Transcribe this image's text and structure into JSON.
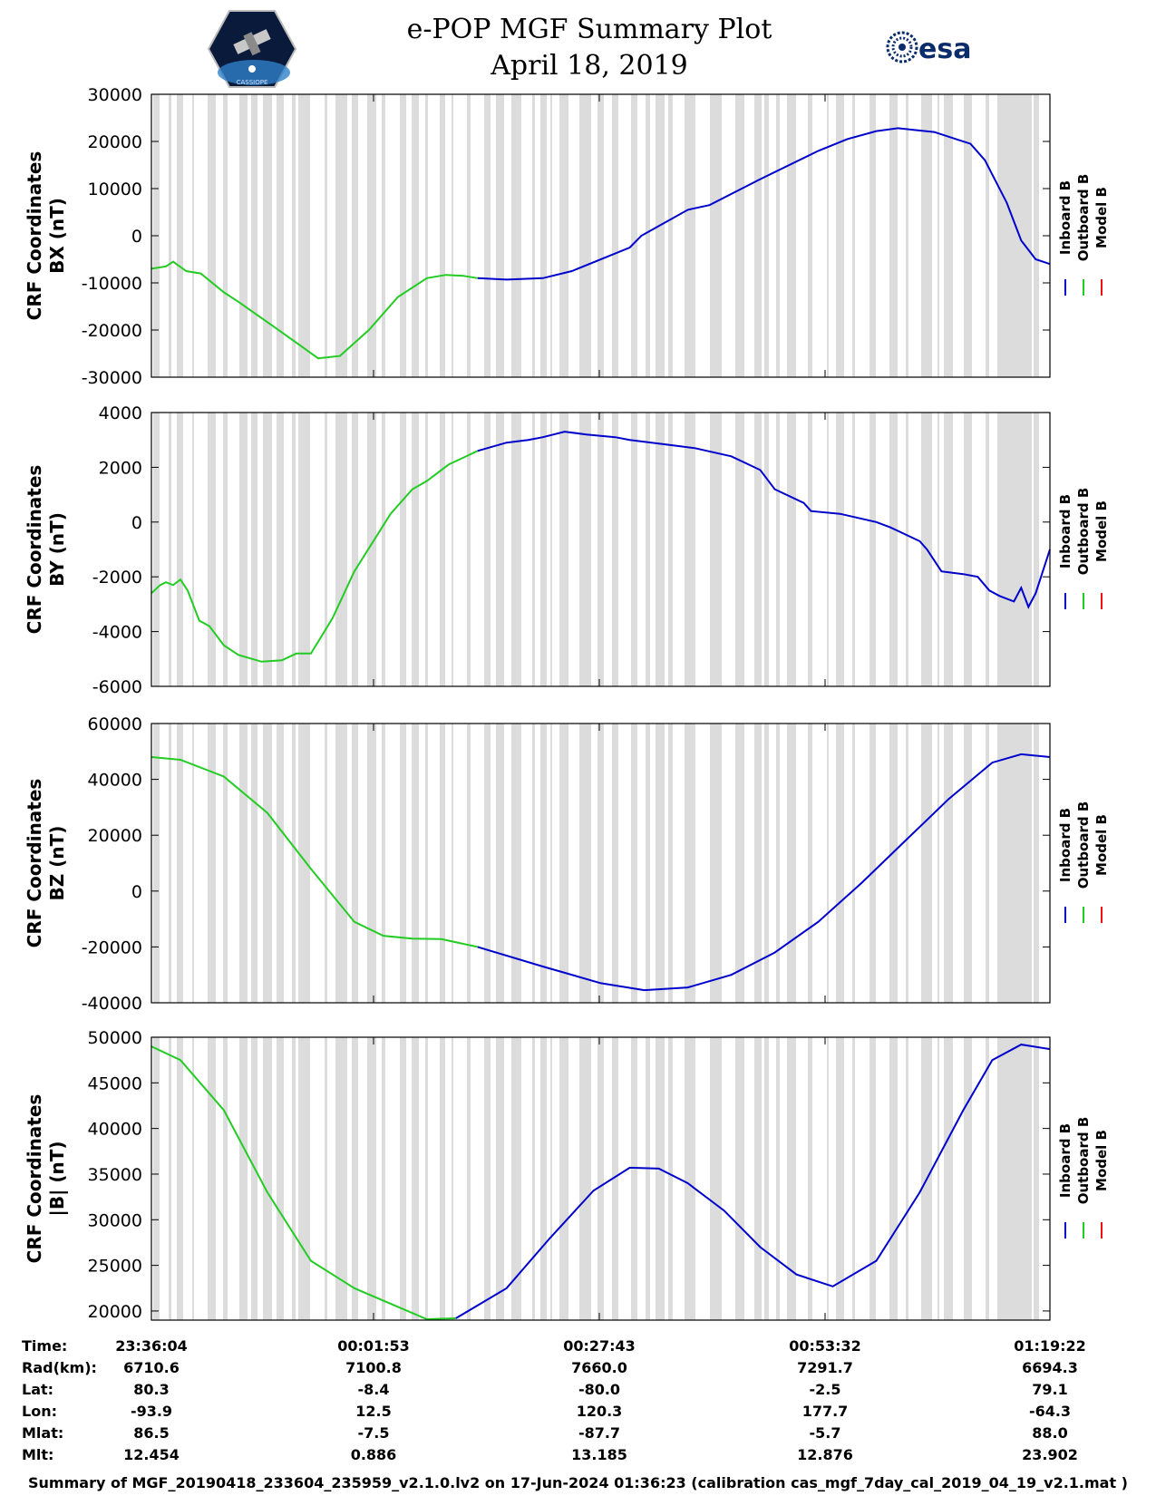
{
  "header": {
    "title": "e-POP MGF Summary Plot",
    "date": "April 18, 2019",
    "left_logo": "CASSIOPE",
    "right_logo": "esa"
  },
  "colors": {
    "inboard": "#0000cc",
    "outboard": "#22cc22",
    "model": "#ee1111",
    "gap_shading": "#dcdcdc",
    "background": "#ffffff"
  },
  "legend": [
    "Inboard B",
    "Outboard B",
    "Model B"
  ],
  "chart_data": [
    {
      "type": "line",
      "title": "",
      "ylabel": [
        "CRF Coordinates",
        "BX (nT)"
      ],
      "ylim": [
        -30000,
        30000
      ],
      "yticks": [
        30000,
        20000,
        10000,
        0,
        -10000,
        -20000,
        -30000
      ],
      "xlim": [
        0,
        6198
      ],
      "series": [
        {
          "name": "Outboard B",
          "color_key": "outboard",
          "x": [
            0,
            100,
            150,
            240,
            340,
            500,
            600,
            900,
            1150,
            1300,
            1500,
            1700,
            1900,
            2030,
            2150,
            2250
          ],
          "y": [
            -7000,
            -6500,
            -5500,
            -7500,
            -8000,
            -12000,
            -14000,
            -20500,
            -26000,
            -25500,
            -20000,
            -13000,
            -9000,
            -8300,
            -8500,
            -9000
          ]
        },
        {
          "name": "Inboard B",
          "color_key": "inboard",
          "x": [
            2250,
            2450,
            2700,
            2900,
            3300,
            3380,
            3700,
            3850,
            4200,
            4600,
            4800,
            5000,
            5150,
            5400,
            5550,
            5650,
            5750,
            5800,
            5900,
            6000,
            6100,
            6198
          ],
          "y": [
            -9000,
            -9300,
            -9000,
            -7500,
            -2500,
            0,
            5500,
            6500,
            12000,
            18000,
            20500,
            22200,
            22800,
            22000,
            20500,
            19500,
            16000,
            13000,
            7000,
            -1000,
            -5000,
            -6000
          ]
        }
      ]
    },
    {
      "type": "line",
      "title": "",
      "ylabel": [
        "CRF Coordinates",
        "BY (nT)"
      ],
      "ylim": [
        -6000,
        4000
      ],
      "yticks": [
        4000,
        2000,
        0,
        -2000,
        -4000,
        -6000
      ],
      "xlim": [
        0,
        6198
      ],
      "series": [
        {
          "name": "Outboard B",
          "color_key": "outboard",
          "x": [
            0,
            60,
            100,
            150,
            200,
            250,
            330,
            400,
            500,
            600,
            760,
            900,
            1000,
            1100,
            1170,
            1250,
            1400,
            1650,
            1800,
            1900,
            2050,
            2250
          ],
          "y": [
            -2600,
            -2300,
            -2200,
            -2300,
            -2100,
            -2500,
            -3600,
            -3800,
            -4500,
            -4850,
            -5100,
            -5050,
            -4800,
            -4800,
            -4200,
            -3500,
            -1800,
            300,
            1200,
            1500,
            2100,
            2600
          ]
        },
        {
          "name": "Inboard B",
          "color_key": "inboard",
          "x": [
            2250,
            2450,
            2600,
            2700,
            2850,
            3000,
            3200,
            3300,
            3450,
            3600,
            3750,
            4000,
            4200,
            4300,
            4500,
            4550,
            4750,
            5000,
            5100,
            5300,
            5350,
            5450,
            5600,
            5700,
            5780,
            5850,
            5950,
            6000,
            6050,
            6100,
            6198
          ],
          "y": [
            2600,
            2900,
            3000,
            3100,
            3300,
            3200,
            3100,
            3000,
            2900,
            2800,
            2700,
            2400,
            1900,
            1200,
            700,
            400,
            300,
            0,
            -200,
            -700,
            -1000,
            -1800,
            -1900,
            -2000,
            -2500,
            -2700,
            -2900,
            -2400,
            -3100,
            -2600,
            -1000
          ]
        }
      ]
    },
    {
      "type": "line",
      "title": "",
      "ylabel": [
        "CRF Coordinates",
        "BZ (nT)"
      ],
      "ylim": [
        -40000,
        60000
      ],
      "yticks": [
        60000,
        40000,
        20000,
        0,
        -20000,
        -40000
      ],
      "xlim": [
        0,
        6198
      ],
      "series": [
        {
          "name": "Outboard B",
          "color_key": "outboard",
          "x": [
            0,
            200,
            500,
            800,
            1100,
            1400,
            1600,
            1800,
            2000,
            2250
          ],
          "y": [
            48000,
            47000,
            41000,
            28000,
            8000,
            -11000,
            -16000,
            -17000,
            -17200,
            -20000
          ]
        },
        {
          "name": "Inboard B",
          "color_key": "inboard",
          "x": [
            2250,
            2700,
            3100,
            3400,
            3700,
            4000,
            4300,
            4600,
            4900,
            5200,
            5500,
            5800,
            6000,
            6198
          ],
          "y": [
            -20000,
            -27000,
            -33000,
            -35500,
            -34500,
            -30000,
            -22000,
            -11000,
            3000,
            18000,
            33000,
            46000,
            49000,
            48000
          ]
        }
      ]
    },
    {
      "type": "line",
      "title": "",
      "ylabel": [
        "CRF Coordinates",
        "|B| (nT)"
      ],
      "ylim": [
        19000,
        50000
      ],
      "yticks": [
        50000,
        45000,
        40000,
        35000,
        30000,
        25000,
        20000
      ],
      "xlim": [
        0,
        6198
      ],
      "series": [
        {
          "name": "Outboard B",
          "color_key": "outboard",
          "x": [
            0,
            200,
            500,
            800,
            1100,
            1400,
            1650,
            1900,
            2100
          ],
          "y": [
            49000,
            47500,
            42000,
            33000,
            25500,
            22500,
            20800,
            19100,
            19200
          ]
        },
        {
          "name": "Inboard B",
          "color_key": "inboard",
          "x": [
            2100,
            2450,
            2750,
            3050,
            3300,
            3500,
            3700,
            3950,
            4200,
            4450,
            4700,
            5000,
            5300,
            5600,
            5800,
            6000,
            6198
          ],
          "y": [
            19200,
            22500,
            28000,
            33200,
            35700,
            35600,
            34000,
            31000,
            27000,
            24000,
            22700,
            25500,
            33000,
            42000,
            47500,
            49200,
            48700
          ]
        }
      ]
    }
  ],
  "xaxis": {
    "tick_times": [
      "23:36:04",
      "00:01:53",
      "00:27:43",
      "00:53:32",
      "01:19:22"
    ],
    "rows": [
      {
        "label": "Time:",
        "values": [
          "23:36:04",
          "00:01:53",
          "00:27:43",
          "00:53:32",
          "01:19:22"
        ]
      },
      {
        "label": "Rad(km):",
        "values": [
          "6710.6",
          "7100.8",
          "7660.0",
          "7291.7",
          "6694.3"
        ]
      },
      {
        "label": "Lat:",
        "values": [
          "80.3",
          "-8.4",
          "-80.0",
          "-2.5",
          "79.1"
        ]
      },
      {
        "label": "Lon:",
        "values": [
          "-93.9",
          "12.5",
          "120.3",
          "177.7",
          "-64.3"
        ]
      },
      {
        "label": "Mlat:",
        "values": [
          "86.5",
          "-7.5",
          "-87.7",
          "-5.7",
          "88.0"
        ]
      },
      {
        "label": "Mlt:",
        "values": [
          "12.454",
          "0.886",
          "13.185",
          "12.876",
          "23.902"
        ]
      }
    ]
  },
  "footer": "Summary of MGF_20190418_233604_235959_v2.1.0.lv2 on 17-Jun-2024 01:36:23 (calibration cas_mgf_7day_cal_2019_04_19_v2.1.mat )"
}
